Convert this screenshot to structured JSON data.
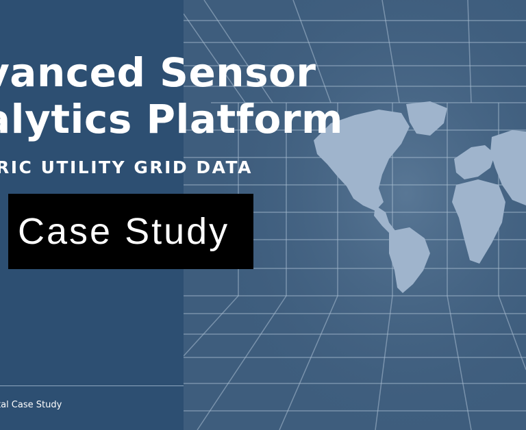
{
  "header": {
    "title_line1": "vanced Sensor",
    "title_line2": "alytics Platform",
    "subtitle": "RIC UTILITY GRID DATA"
  },
  "badge": {
    "label": "Case Study"
  },
  "footer": {
    "text": "tal Case Study"
  },
  "colors": {
    "left_panel": "#2d4f72",
    "right_panel": "#3e5d7d",
    "grid_lines": "#a9bdd2",
    "map_land": "#9fb4cc",
    "badge_bg": "#000000",
    "text": "#ffffff"
  },
  "icons": {
    "background_graphic": "world-map-grid-icon"
  }
}
